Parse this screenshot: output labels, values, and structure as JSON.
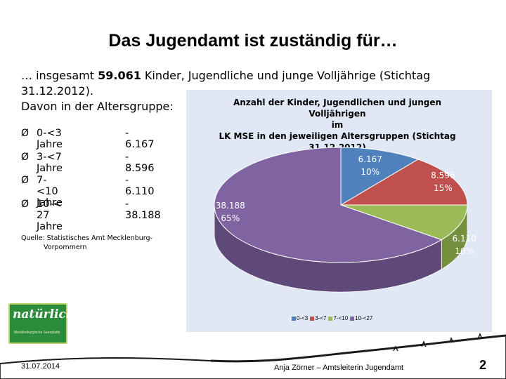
{
  "slide": {
    "title": "Das Jugendamt ist zuständig für…",
    "intro_line1_prefix": "… insgesamt ",
    "intro_line1_bold": "59.061",
    "intro_line1_suffix": " Kinder, Jugendliche und junge Volljährige (Stichtag 31.12.2012).",
    "intro_line2": "Davon in der Altersgruppe:",
    "bullet_symbol": "Ø",
    "bullets": [
      {
        "label": "0-<3 Jahre",
        "value": "- 6.167"
      },
      {
        "label": "3-<7 Jahre",
        "value": "- 8.596"
      },
      {
        "label": "7-<10 Jahre",
        "value": "- 6.110"
      },
      {
        "label": "10-< 27 Jahre",
        "value": "- 38.188"
      }
    ],
    "source_line1": "Quelle: Statistisches Amt Mecklenburg-",
    "source_line2": "Vorpommern",
    "logo_text": "natürlich!",
    "logo_subtext": "Mecklenburgische Seenplatte",
    "footer_date": "31.07.2014",
    "footer_author": "Anja Zörner – Amtsleiterin Jugendamt",
    "page_number": "2"
  },
  "chart_data": {
    "type": "pie",
    "title_lines": [
      "Anzahl der Kinder, Jugendlichen und jungen Volljährigen",
      "im",
      "LK MSE in den jeweiligen Altersgruppen (Stichtag",
      "31.12.2012)"
    ],
    "categories": [
      "0-<3",
      "3-<7",
      "7-<10",
      "10-<27"
    ],
    "values": [
      6167,
      8596,
      6110,
      38188
    ],
    "percent_labels": [
      "10%",
      "15%",
      "10%",
      "65%"
    ],
    "value_labels": [
      "6.167",
      "8.596",
      "6.110",
      "38.188"
    ],
    "legend": [
      "0-<3",
      "3-<7",
      "7-<10",
      "10-<27"
    ],
    "legend_position": "bottom",
    "colors": [
      "#4f81bd",
      "#c0504d",
      "#9bbb59",
      "#8064a2"
    ],
    "side_colors": [
      "#3a6394",
      "#8f3a38",
      "#74903e",
      "#5e4979"
    ]
  }
}
